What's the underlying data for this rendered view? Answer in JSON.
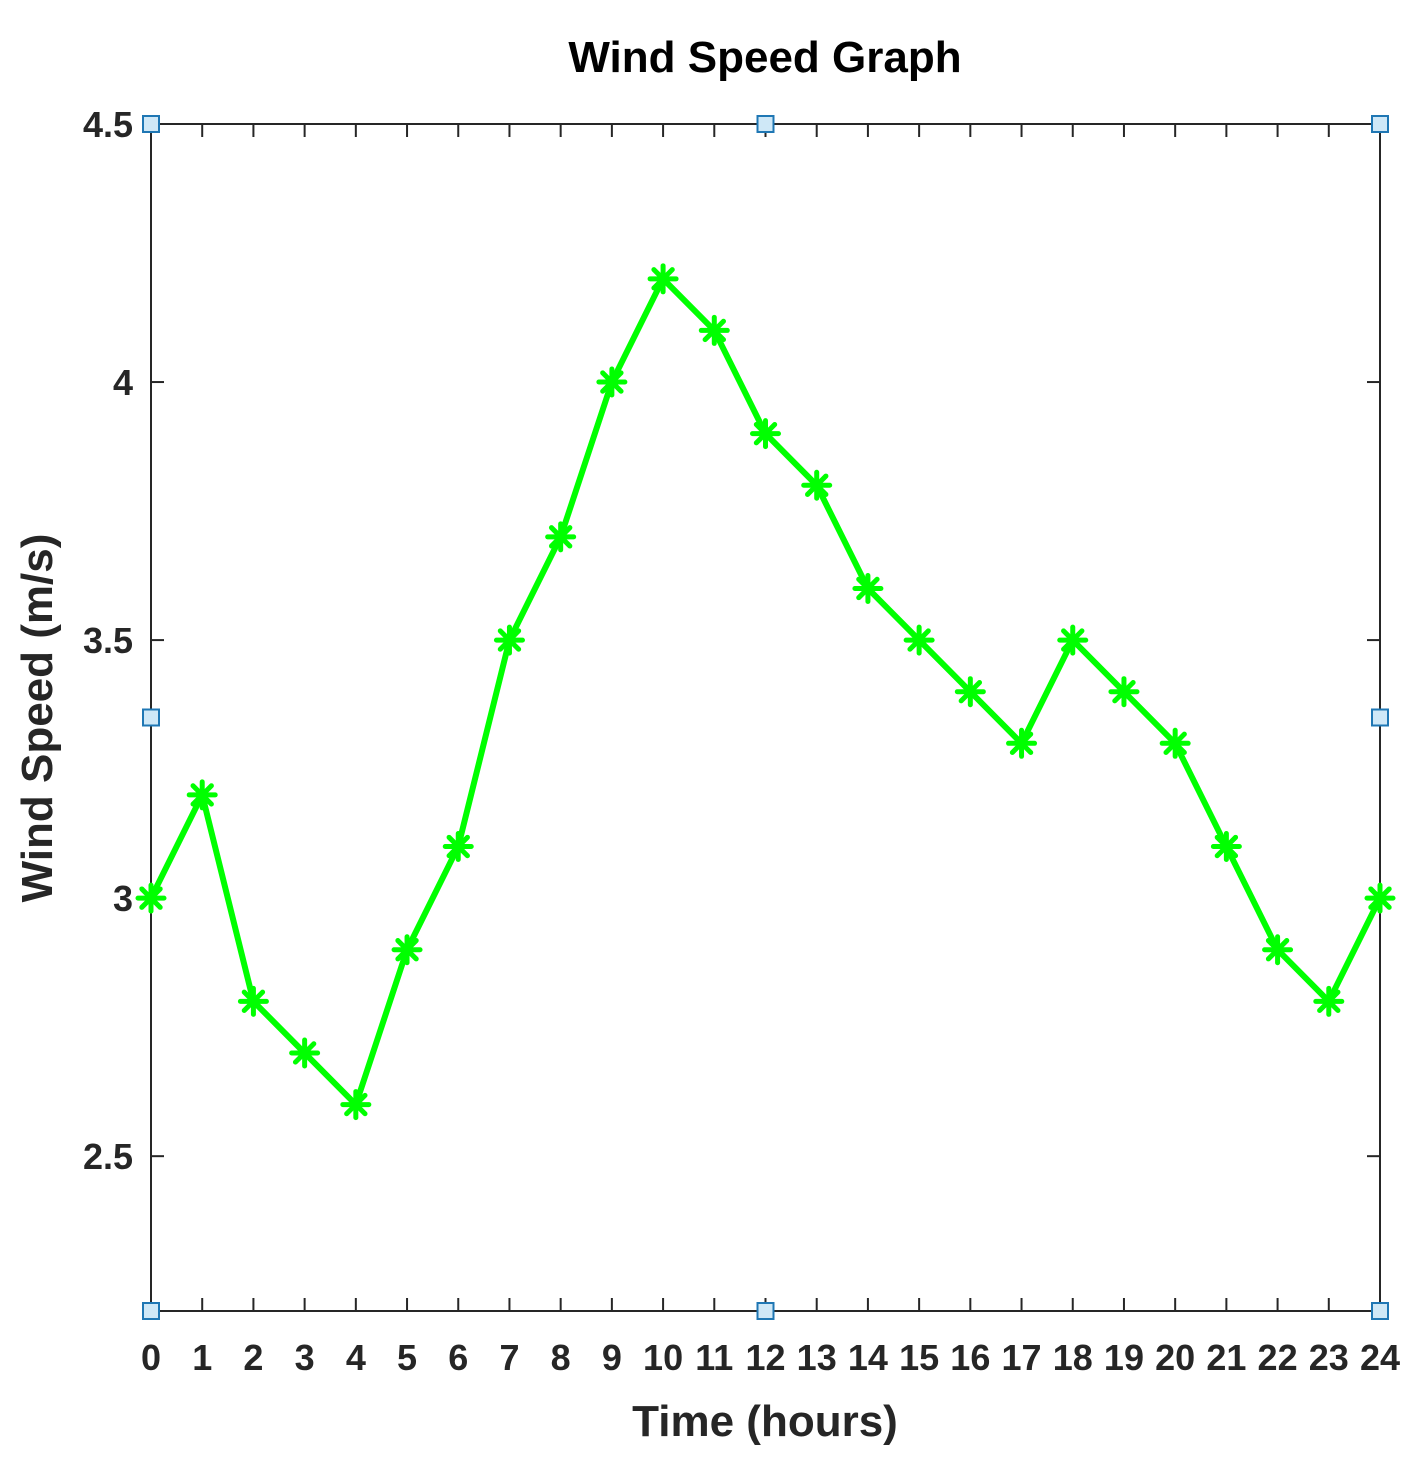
{
  "chart_data": {
    "type": "line",
    "title": "Wind Speed Graph",
    "xlabel": "Time (hours)",
    "ylabel": "Wind Speed (m/s)",
    "xlim": [
      0,
      24
    ],
    "ylim": [
      2.2,
      4.5
    ],
    "x_ticks": [
      0,
      1,
      2,
      3,
      4,
      5,
      6,
      7,
      8,
      9,
      10,
      11,
      12,
      13,
      14,
      15,
      16,
      17,
      18,
      19,
      20,
      21,
      22,
      23,
      24
    ],
    "y_ticks": [
      2.5,
      3,
      3.5,
      4,
      4.5
    ],
    "x_tick_labels": [
      "0",
      "1",
      "2",
      "3",
      "4",
      "5",
      "6",
      "7",
      "8",
      "9",
      "10",
      "11",
      "12",
      "13",
      "14",
      "15",
      "16",
      "17",
      "18",
      "19",
      "20",
      "21",
      "22",
      "23",
      "24"
    ],
    "y_tick_labels": [
      "2.5",
      "3",
      "3.5",
      "4",
      "4.5"
    ],
    "grid": false,
    "box": true,
    "series": [
      {
        "x": [
          0,
          1,
          2,
          3,
          4,
          5,
          6,
          7,
          8,
          9,
          10,
          11,
          12,
          13,
          14,
          15,
          16,
          17,
          18,
          19,
          20,
          21,
          22,
          23,
          24
        ],
        "values": [
          3.0,
          3.2,
          2.8,
          2.7,
          2.6,
          2.9,
          3.1,
          3.5,
          3.7,
          4.0,
          4.2,
          4.1,
          3.9,
          3.8,
          3.6,
          3.5,
          3.4,
          3.3,
          3.5,
          3.4,
          3.3,
          3.1,
          2.9,
          2.8,
          3.0
        ],
        "color": "#00ff00",
        "marker": "asterisk"
      }
    ],
    "selection_handles": {
      "color": "#1f77b4",
      "fill": "#cfe8f7"
    }
  }
}
